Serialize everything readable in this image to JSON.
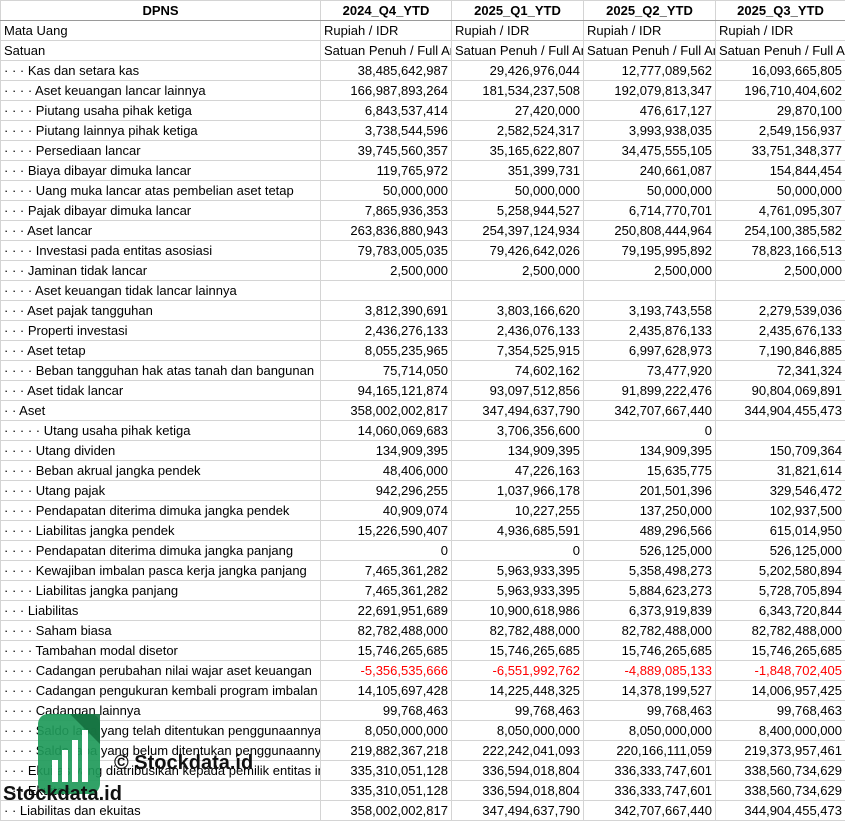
{
  "table": {
    "header": [
      "DPNS",
      "2024_Q4_YTD",
      "2025_Q1_YTD",
      "2025_Q2_YTD",
      "2025_Q3_YTD"
    ],
    "meta_rows": [
      {
        "label": "Mata Uang",
        "values": [
          "Rupiah / IDR",
          "Rupiah / IDR",
          "Rupiah / IDR",
          "Rupiah / IDR"
        ]
      },
      {
        "label": "Satuan",
        "values": [
          "Satuan Penuh / Full Amount",
          "Satuan Penuh / Full Amount",
          "Satuan Penuh / Full Amount",
          "Satuan Penuh / Full Amount"
        ]
      }
    ],
    "rows": [
      {
        "label": "· · · Kas dan setara kas",
        "values": [
          "38,485,642,987",
          "29,426,976,044",
          "12,777,089,562",
          "16,093,665,805"
        ]
      },
      {
        "label": "· · · · Aset keuangan lancar lainnya",
        "values": [
          "166,987,893,264",
          "181,534,237,508",
          "192,079,813,347",
          "196,710,404,602"
        ]
      },
      {
        "label": "· · · · Piutang usaha pihak ketiga",
        "values": [
          "6,843,537,414",
          "27,420,000",
          "476,617,127",
          "29,870,100"
        ]
      },
      {
        "label": "· · · · Piutang lainnya pihak ketiga",
        "values": [
          "3,738,544,596",
          "2,582,524,317",
          "3,993,938,035",
          "2,549,156,937"
        ]
      },
      {
        "label": "· · · · Persediaan lancar",
        "values": [
          "39,745,560,357",
          "35,165,622,807",
          "34,475,555,105",
          "33,751,348,377"
        ]
      },
      {
        "label": "· · · Biaya dibayar dimuka lancar",
        "values": [
          "119,765,972",
          "351,399,731",
          "240,661,087",
          "154,844,454"
        ]
      },
      {
        "label": "· · · · Uang muka lancar atas pembelian aset tetap",
        "values": [
          "50,000,000",
          "50,000,000",
          "50,000,000",
          "50,000,000"
        ]
      },
      {
        "label": "· · · Pajak dibayar dimuka lancar",
        "values": [
          "7,865,936,353",
          "5,258,944,527",
          "6,714,770,701",
          "4,761,095,307"
        ]
      },
      {
        "label": "· · · Aset lancar",
        "values": [
          "263,836,880,943",
          "254,397,124,934",
          "250,808,444,964",
          "254,100,385,582"
        ]
      },
      {
        "label": "· · · · Investasi pada entitas asosiasi",
        "values": [
          "79,783,005,035",
          "79,426,642,026",
          "79,195,995,892",
          "78,823,166,513"
        ]
      },
      {
        "label": "· · · Jaminan tidak lancar",
        "values": [
          "2,500,000",
          "2,500,000",
          "2,500,000",
          "2,500,000"
        ]
      },
      {
        "label": "· · · · Aset keuangan tidak lancar lainnya",
        "values": [
          null,
          null,
          null,
          null
        ]
      },
      {
        "label": "· · · Aset pajak tangguhan",
        "values": [
          "3,812,390,691",
          "3,803,166,620",
          "3,193,743,558",
          "2,279,539,036"
        ]
      },
      {
        "label": "· · · Properti investasi",
        "values": [
          "2,436,276,133",
          "2,436,076,133",
          "2,435,876,133",
          "2,435,676,133"
        ]
      },
      {
        "label": "· · · Aset tetap",
        "values": [
          "8,055,235,965",
          "7,354,525,915",
          "6,997,628,973",
          "7,190,846,885"
        ]
      },
      {
        "label": "· · · · Beban tangguhan hak atas tanah dan bangunan",
        "values": [
          "75,714,050",
          "74,602,162",
          "73,477,920",
          "72,341,324"
        ]
      },
      {
        "label": "· · · Aset tidak lancar",
        "values": [
          "94,165,121,874",
          "93,097,512,856",
          "91,899,222,476",
          "90,804,069,891"
        ]
      },
      {
        "label": "· · Aset",
        "values": [
          "358,002,002,817",
          "347,494,637,790",
          "342,707,667,440",
          "344,904,455,473"
        ]
      },
      {
        "label": "· · · · · Utang usaha pihak ketiga",
        "values": [
          "14,060,069,683",
          "3,706,356,600",
          "0",
          null
        ]
      },
      {
        "label": "· · · · Utang dividen",
        "values": [
          "134,909,395",
          "134,909,395",
          "134,909,395",
          "150,709,364"
        ]
      },
      {
        "label": "· · · · Beban akrual jangka pendek",
        "values": [
          "48,406,000",
          "47,226,163",
          "15,635,775",
          "31,821,614"
        ]
      },
      {
        "label": "· · · · Utang pajak",
        "values": [
          "942,296,255",
          "1,037,966,178",
          "201,501,396",
          "329,546,472"
        ]
      },
      {
        "label": "· · · · Pendapatan diterima dimuka jangka pendek",
        "values": [
          "40,909,074",
          "10,227,255",
          "137,250,000",
          "102,937,500"
        ]
      },
      {
        "label": "· · · · Liabilitas jangka pendek",
        "values": [
          "15,226,590,407",
          "4,936,685,591",
          "489,296,566",
          "615,014,950"
        ]
      },
      {
        "label": "· · · · Pendapatan diterima dimuka jangka panjang",
        "values": [
          "0",
          "0",
          "526,125,000",
          "526,125,000"
        ]
      },
      {
        "label": "· · · · Kewajiban imbalan pasca kerja jangka panjang",
        "values": [
          "7,465,361,282",
          "5,963,933,395",
          "5,358,498,273",
          "5,202,580,894"
        ]
      },
      {
        "label": "· · · · Liabilitas jangka panjang",
        "values": [
          "7,465,361,282",
          "5,963,933,395",
          "5,884,623,273",
          "5,728,705,894"
        ]
      },
      {
        "label": "· · · Liabilitas",
        "values": [
          "22,691,951,689",
          "10,900,618,986",
          "6,373,919,839",
          "6,343,720,844"
        ]
      },
      {
        "label": "· · · · Saham biasa",
        "values": [
          "82,782,488,000",
          "82,782,488,000",
          "82,782,488,000",
          "82,782,488,000"
        ]
      },
      {
        "label": "· · · · Tambahan modal disetor",
        "values": [
          "15,746,265,685",
          "15,746,265,685",
          "15,746,265,685",
          "15,746,265,685"
        ]
      },
      {
        "label": "· · · · Cadangan perubahan nilai wajar aset keuangan",
        "values": [
          "-5,356,535,666",
          "-6,551,992,762",
          "-4,889,085,133",
          "-1,848,702,405"
        ]
      },
      {
        "label": "· · · · Cadangan pengukuran kembali program imbalan pasti",
        "values": [
          "14,105,697,428",
          "14,225,448,325",
          "14,378,199,527",
          "14,006,957,425"
        ]
      },
      {
        "label": "· · · · Cadangan lainnya",
        "values": [
          "99,768,463",
          "99,768,463",
          "99,768,463",
          "99,768,463"
        ]
      },
      {
        "label": "· · · · Saldo laba yang telah ditentukan penggunaannya",
        "values": [
          "8,050,000,000",
          "8,050,000,000",
          "8,050,000,000",
          "8,400,000,000"
        ]
      },
      {
        "label": "· · · · Saldo laba yang belum ditentukan penggunaannya",
        "values": [
          "219,882,367,218",
          "222,242,041,093",
          "220,166,111,059",
          "219,373,957,461"
        ]
      },
      {
        "label": "· · · Ekuitas yang diatribusikan kepada pemilik entitas induk",
        "values": [
          "335,310,051,128",
          "336,594,018,804",
          "336,333,747,601",
          "338,560,734,629"
        ]
      },
      {
        "label": "· · · Ekuitas",
        "values": [
          "335,310,051,128",
          "336,594,018,804",
          "336,333,747,601",
          "338,560,734,629"
        ]
      },
      {
        "label": "· · Liabilitas dan ekuitas",
        "values": [
          "358,002,002,817",
          "347,494,637,790",
          "342,707,667,440",
          "344,904,455,473"
        ]
      }
    ]
  },
  "negative_color": "#ff0000",
  "watermark": {
    "caption": "© Stockdata.id",
    "brand": "Stockdata.id"
  }
}
